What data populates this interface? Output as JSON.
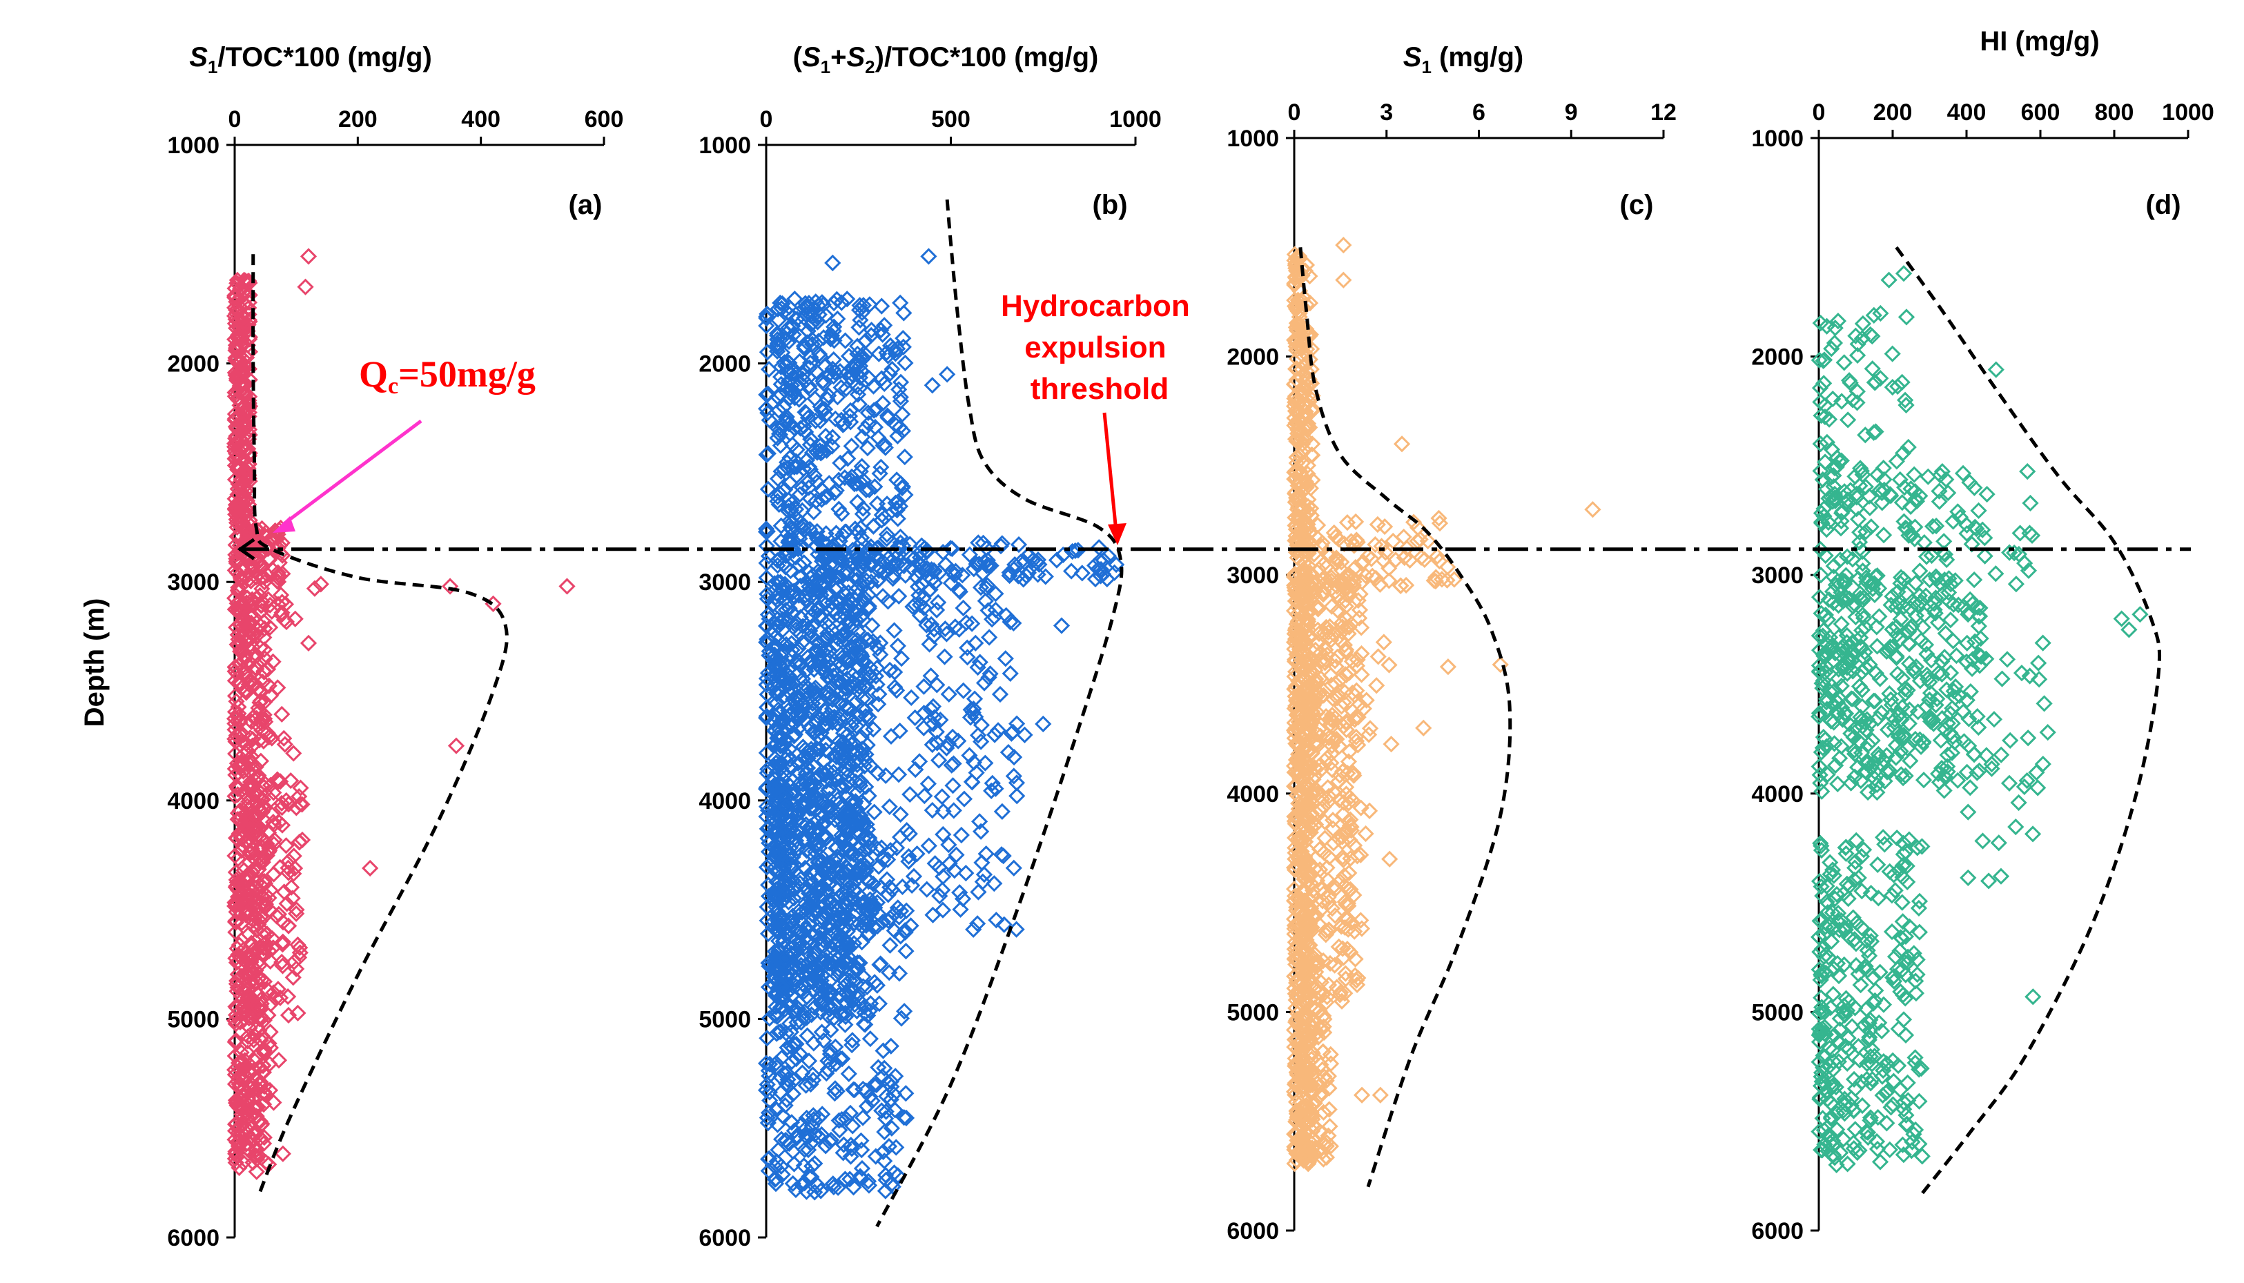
{
  "figure": {
    "y_axis_label": "Depth (m)",
    "y_range": [
      1000,
      6000
    ],
    "y_ticks": [
      1000,
      2000,
      3000,
      4000,
      5000,
      6000
    ],
    "threshold_depth": 2850,
    "annotations": {
      "qc_prefix": "Q",
      "qc_sub": "c",
      "qc_suffix": "=50mg/g",
      "expulsion_line1": "Hydrocarbon",
      "expulsion_line2": "expulsion",
      "expulsion_line3": "threshold"
    }
  },
  "chart_data": [
    {
      "type": "scatter",
      "panel": "(a)",
      "title_parts": [
        "S",
        "1",
        "/TOC*100 (mg/g)"
      ],
      "xlim": [
        0,
        600
      ],
      "x_ticks": [
        0,
        200,
        400,
        600
      ],
      "ylim": [
        1000,
        6000
      ],
      "color": "#e8456b",
      "envelope": [
        [
          30,
          1500
        ],
        [
          30,
          2000
        ],
        [
          32,
          2450
        ],
        [
          35,
          2750
        ],
        [
          60,
          2850
        ],
        [
          200,
          2980
        ],
        [
          380,
          3050
        ],
        [
          440,
          3200
        ],
        [
          420,
          3500
        ],
        [
          330,
          4100
        ],
        [
          200,
          4800
        ],
        [
          90,
          5450
        ],
        [
          40,
          5800
        ]
      ],
      "clusters": [
        {
          "count": 260,
          "d": [
            1600,
            2900
          ],
          "x": [
            0,
            25
          ]
        },
        {
          "count": 70,
          "d": [
            2750,
            3000
          ],
          "x": [
            20,
            80
          ]
        },
        {
          "count": 500,
          "d": [
            2900,
            5700
          ],
          "x": [
            0,
            50
          ]
        },
        {
          "count": 160,
          "d": [
            3900,
            5000
          ],
          "x": [
            20,
            110
          ]
        },
        {
          "count": 30,
          "d": [
            3000,
            3800
          ],
          "x": [
            40,
            100
          ]
        },
        {
          "count": 15,
          "d": [
            5000,
            5700
          ],
          "x": [
            30,
            80
          ]
        }
      ],
      "points": [
        [
          120,
          1510
        ],
        [
          115,
          1650
        ],
        [
          350,
          3020
        ],
        [
          540,
          3020
        ],
        [
          420,
          3100
        ],
        [
          360,
          3750
        ],
        [
          220,
          4310
        ],
        [
          130,
          3030
        ],
        [
          120,
          3280
        ],
        [
          140,
          3010
        ]
      ]
    },
    {
      "type": "scatter",
      "panel": "(b)",
      "title_parts": [
        "(",
        "S",
        "1",
        "+",
        "S",
        "2",
        ")/TOC*100 (mg/g)"
      ],
      "xlim": [
        0,
        1000
      ],
      "x_ticks": [
        0,
        500,
        1000
      ],
      "ylim": [
        1000,
        6000
      ],
      "color": "#1f6fd6",
      "envelope": [
        [
          490,
          1250
        ],
        [
          500,
          1450
        ],
        [
          520,
          1800
        ],
        [
          550,
          2200
        ],
        [
          590,
          2450
        ],
        [
          700,
          2620
        ],
        [
          900,
          2750
        ],
        [
          960,
          2900
        ],
        [
          940,
          3150
        ],
        [
          840,
          3700
        ],
        [
          680,
          4500
        ],
        [
          500,
          5300
        ],
        [
          300,
          5950
        ]
      ],
      "clusters": [
        {
          "count": 420,
          "d": [
            1700,
            3000
          ],
          "x": [
            30,
            380
          ]
        },
        {
          "count": 150,
          "d": [
            2820,
            2990
          ],
          "x": [
            150,
            950
          ]
        },
        {
          "count": 900,
          "d": [
            3000,
            5000
          ],
          "x": [
            20,
            280
          ]
        },
        {
          "count": 280,
          "d": [
            3000,
            4600
          ],
          "x": [
            200,
            680
          ]
        },
        {
          "count": 380,
          "d": [
            4000,
            5800
          ],
          "x": [
            20,
            380
          ]
        },
        {
          "count": 80,
          "d": [
            1600,
            5700
          ],
          "x": [
            0,
            10
          ]
        }
      ],
      "points": [
        [
          180,
          1540
        ],
        [
          440,
          1510
        ],
        [
          490,
          2050
        ],
        [
          450,
          2100
        ],
        [
          800,
          3200
        ],
        [
          700,
          3700
        ],
        [
          750,
          3650
        ],
        [
          300,
          5300
        ],
        [
          320,
          5650
        ],
        [
          340,
          5500
        ]
      ]
    },
    {
      "type": "scatter",
      "panel": "(c)",
      "title_parts": [
        "S",
        "1",
        " (mg/g)"
      ],
      "xlim": [
        0,
        12
      ],
      "x_ticks": [
        0,
        3,
        6,
        9,
        12
      ],
      "ylim": [
        1000,
        6000
      ],
      "color": "#f8b87a",
      "envelope": [
        [
          0.2,
          1500
        ],
        [
          0.4,
          1800
        ],
        [
          0.7,
          2150
        ],
        [
          1.5,
          2450
        ],
        [
          3.0,
          2650
        ],
        [
          4.3,
          2800
        ],
        [
          5.4,
          3000
        ],
        [
          6.4,
          3250
        ],
        [
          7.0,
          3600
        ],
        [
          6.7,
          4100
        ],
        [
          5.3,
          4700
        ],
        [
          3.8,
          5200
        ],
        [
          2.4,
          5800
        ]
      ],
      "clusters": [
        {
          "count": 650,
          "d": [
            1500,
            5700
          ],
          "x": [
            0,
            0.6
          ]
        },
        {
          "count": 90,
          "d": [
            2750,
            3050
          ],
          "x": [
            0.3,
            5
          ]
        },
        {
          "count": 350,
          "d": [
            3000,
            5000
          ],
          "x": [
            0.3,
            2.2
          ]
        },
        {
          "count": 90,
          "d": [
            5000,
            5700
          ],
          "x": [
            0.2,
            1.2
          ]
        },
        {
          "count": 25,
          "d": [
            3300,
            4300
          ],
          "x": [
            1.5,
            3.2
          ]
        }
      ],
      "points": [
        [
          1.6,
          1490
        ],
        [
          1.6,
          1650
        ],
        [
          3.5,
          2400
        ],
        [
          4.7,
          2740
        ],
        [
          9.7,
          2700
        ],
        [
          5.2,
          3020
        ],
        [
          5.0,
          3420
        ],
        [
          6.7,
          3410
        ],
        [
          4.2,
          3700
        ],
        [
          3.1,
          4300
        ],
        [
          2.2,
          5380
        ],
        [
          2.8,
          5380
        ]
      ]
    },
    {
      "type": "scatter",
      "panel": "(d)",
      "title_parts": [
        "HI (mg/g)"
      ],
      "xlim": [
        0,
        1000
      ],
      "x_ticks": [
        0,
        200,
        400,
        600,
        800,
        1000
      ],
      "ylim": [
        1000,
        6000
      ],
      "color": "#35b58f",
      "envelope": [
        [
          210,
          1500
        ],
        [
          330,
          1780
        ],
        [
          480,
          2150
        ],
        [
          650,
          2550
        ],
        [
          800,
          2850
        ],
        [
          900,
          3200
        ],
        [
          920,
          3450
        ],
        [
          860,
          4000
        ],
        [
          740,
          4600
        ],
        [
          560,
          5200
        ],
        [
          410,
          5550
        ],
        [
          280,
          5830
        ]
      ],
      "clusters": [
        {
          "count": 80,
          "d": [
            1800,
            2700
          ],
          "x": [
            0,
            250
          ]
        },
        {
          "count": 120,
          "d": [
            2500,
            3050
          ],
          "x": [
            0,
            580
          ]
        },
        {
          "count": 350,
          "d": [
            3000,
            4000
          ],
          "x": [
            0,
            440
          ]
        },
        {
          "count": 300,
          "d": [
            4200,
            5700
          ],
          "x": [
            0,
            280
          ]
        },
        {
          "count": 40,
          "d": [
            3300,
            4400
          ],
          "x": [
            400,
            620
          ]
        }
      ],
      "points": [
        [
          230,
          1620
        ],
        [
          190,
          1650
        ],
        [
          480,
          2060
        ],
        [
          820,
          3200
        ],
        [
          840,
          3250
        ],
        [
          870,
          3180
        ],
        [
          620,
          3720
        ],
        [
          580,
          4930
        ],
        [
          280,
          5660
        ],
        [
          460,
          4400
        ]
      ]
    }
  ]
}
